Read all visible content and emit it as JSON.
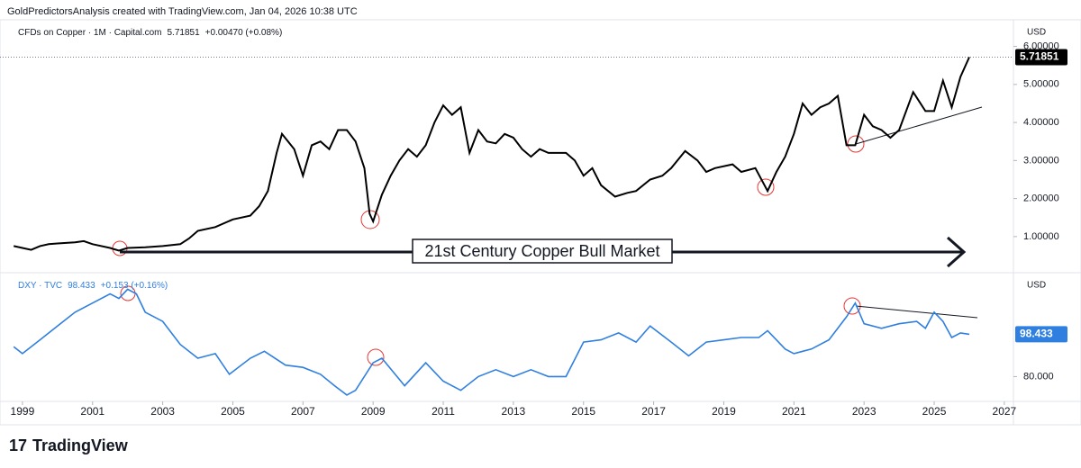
{
  "header": "GoldPredictorsAnalysis created with TradingView.com, Jan 04, 2026 10:38 UTC",
  "footer": "TradingView",
  "chart_data": [
    {
      "type": "line",
      "series": [
        {
          "name": "CFDs on Copper · 1M · Capital.com",
          "color": "#000000",
          "values": [
            0.75,
            0.7,
            0.65,
            0.75,
            0.8,
            0.82,
            0.85,
            0.88,
            0.8,
            0.7,
            0.63,
            0.7,
            0.72,
            0.75,
            0.8,
            0.95,
            1.15,
            1.25,
            1.45,
            1.55,
            1.8,
            2.2,
            3.2,
            3.7,
            3.3,
            2.6,
            3.4,
            3.5,
            3.3,
            3.8,
            3.8,
            3.5,
            2.8,
            1.6,
            1.4,
            2.1,
            2.6,
            3.0,
            3.3,
            3.1,
            3.4,
            4.0,
            4.45,
            4.2,
            4.4,
            3.2,
            3.8,
            3.5,
            3.45,
            3.7,
            3.6,
            3.3,
            3.1,
            3.3,
            3.2,
            3.2,
            3.0,
            2.6,
            2.8,
            2.35,
            2.05,
            2.15,
            2.2,
            2.5,
            2.6,
            2.8,
            3.25,
            3.0,
            2.7,
            2.8,
            2.9,
            2.7,
            2.8,
            2.2,
            2.7,
            3.1,
            3.7,
            4.5,
            4.2,
            4.4,
            4.5,
            4.7,
            3.4,
            3.4,
            4.2,
            3.9,
            3.8,
            3.6,
            3.8,
            4.8,
            4.3,
            4.3,
            5.1,
            4.4,
            5.2,
            5.71851
          ]
        }
      ],
      "x": [
        1998.75,
        1999.0,
        1999.25,
        1999.5,
        1999.75,
        2000.0,
        2000.5,
        2000.75,
        2001.0,
        2001.5,
        2001.75,
        2002.0,
        2002.5,
        2003.0,
        2003.5,
        2003.75,
        2004.0,
        2004.5,
        2005.0,
        2005.5,
        2005.75,
        2006.0,
        2006.25,
        2006.4,
        2006.75,
        2007.0,
        2007.25,
        2007.5,
        2007.75,
        2008.0,
        2008.25,
        2008.5,
        2008.75,
        2008.9,
        2009.0,
        2009.25,
        2009.5,
        2009.75,
        2010.0,
        2010.25,
        2010.5,
        2010.75,
        2011.0,
        2011.25,
        2011.5,
        2011.75,
        2012.0,
        2012.25,
        2012.5,
        2012.75,
        2013.0,
        2013.25,
        2013.5,
        2013.75,
        2014.0,
        2014.5,
        2014.75,
        2015.0,
        2015.25,
        2015.5,
        2015.9,
        2016.25,
        2016.5,
        2016.9,
        2017.25,
        2017.5,
        2017.9,
        2018.25,
        2018.5,
        2018.75,
        2019.25,
        2019.5,
        2019.9,
        2020.25,
        2020.5,
        2020.75,
        2021.0,
        2021.25,
        2021.5,
        2021.75,
        2022.0,
        2022.25,
        2022.5,
        2022.75,
        2023.0,
        2023.25,
        2023.5,
        2023.75,
        2024.0,
        2024.4,
        2024.75,
        2025.0,
        2025.25,
        2025.5,
        2025.75,
        2026.0
      ],
      "last_value_label": "5.71851",
      "change_label": "+0.00470 (+0.08%)",
      "unit": "USD",
      "annotation": "21st Century Copper Bull Market",
      "xlim": [
        1998.36,
        2027.26
      ],
      "ylim": [
        0.05,
        6.7
      ],
      "yticks": [
        {
          "value": 1,
          "label": "1.00000"
        },
        {
          "value": 2,
          "label": "2.00000"
        },
        {
          "value": 3,
          "label": "3.00000"
        },
        {
          "value": 4,
          "label": "4.00000"
        },
        {
          "value": 5,
          "label": "5.00000"
        },
        {
          "value": 6,
          "label": "6.00000"
        }
      ]
    },
    {
      "type": "line",
      "series": [
        {
          "name": "DXY · TVC",
          "color": "#2f7fe0",
          "values": [
            93,
            90,
            96,
            102,
            108,
            112,
            116,
            114,
            118,
            116,
            108,
            104,
            94,
            88,
            90,
            81,
            88,
            91,
            85,
            84,
            81,
            76,
            72,
            74,
            86,
            88,
            76,
            86,
            78,
            74,
            80,
            83,
            80,
            83,
            80,
            80,
            95,
            96,
            99,
            95,
            102,
            95,
            89,
            95,
            96,
            97,
            97,
            100,
            92,
            90,
            92,
            96,
            106,
            112,
            103,
            101,
            103,
            104,
            101,
            108,
            104,
            97,
            99,
            98.433
          ]
        }
      ],
      "x": [
        1998.75,
        1999.0,
        1999.5,
        2000.0,
        2000.5,
        2001.0,
        2001.5,
        2001.75,
        2002.0,
        2002.25,
        2002.5,
        2003.0,
        2003.5,
        2004.0,
        2004.5,
        2004.9,
        2005.5,
        2005.9,
        2006.5,
        2007.0,
        2007.5,
        2007.9,
        2008.25,
        2008.5,
        2009.0,
        2009.25,
        2009.9,
        2010.5,
        2011.0,
        2011.5,
        2012.0,
        2012.5,
        2013.0,
        2013.5,
        2014.0,
        2014.5,
        2015.0,
        2015.5,
        2016.0,
        2016.5,
        2016.9,
        2017.5,
        2018.0,
        2018.5,
        2019.0,
        2019.5,
        2020.0,
        2020.25,
        2020.75,
        2021.0,
        2021.5,
        2022.0,
        2022.5,
        2022.75,
        2023.0,
        2023.5,
        2024.0,
        2024.5,
        2024.75,
        2025.0,
        2025.25,
        2025.5,
        2025.75,
        2026.0
      ],
      "last_value_label": "98.433",
      "change_label": "+0.153 (+0.16%)",
      "unit": "USD",
      "xlim": [
        1998.36,
        2027.26
      ],
      "ylim": [
        69.2,
        125.2
      ],
      "yticks": [
        {
          "value": 80,
          "label": "80.000"
        }
      ],
      "xticks": [
        1999,
        2001,
        2003,
        2005,
        2007,
        2009,
        2011,
        2013,
        2015,
        2017,
        2019,
        2021,
        2023,
        2025,
        2027
      ]
    }
  ]
}
